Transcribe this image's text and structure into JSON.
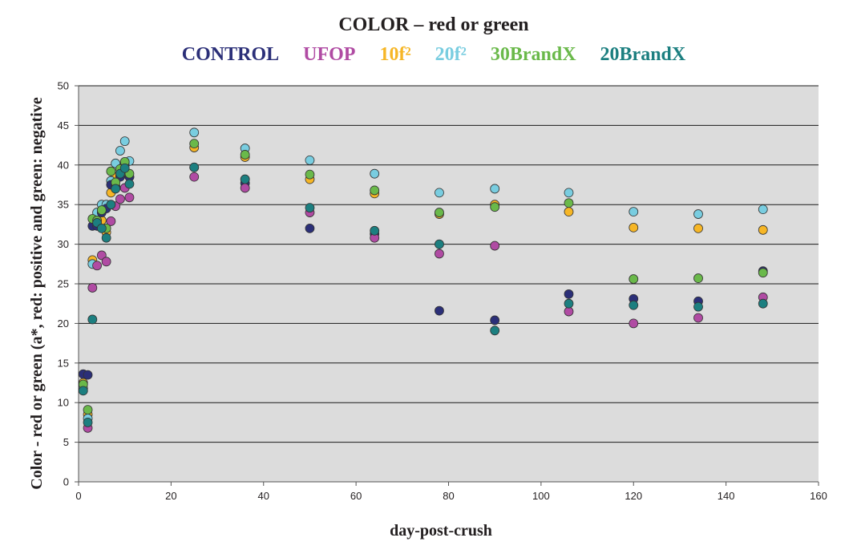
{
  "chart_data": {
    "type": "scatter",
    "title": "COLOR – red or green",
    "xlabel": "day-post-crush",
    "ylabel": "Color - red or green (a*, red: positive and green: negative",
    "xlim": [
      0,
      160
    ],
    "ylim": [
      0,
      50
    ],
    "xticks": [
      "0",
      "20",
      "40",
      "60",
      "80",
      "100",
      "120",
      "140",
      "160"
    ],
    "yticks": [
      "0",
      "5",
      "10",
      "15",
      "20",
      "25",
      "30",
      "35",
      "40",
      "45",
      "50"
    ],
    "grid": "horizontal",
    "legend_position": "top",
    "series": [
      {
        "name": "10f²",
        "color": "#f6b626",
        "points": [
          [
            1,
            12.5
          ],
          [
            2,
            8.5
          ],
          [
            3,
            28
          ],
          [
            4,
            33
          ],
          [
            5,
            33
          ],
          [
            6,
            31.5
          ],
          [
            7,
            36.5
          ],
          [
            8,
            38.5
          ],
          [
            9,
            38.7
          ],
          [
            10,
            40.2
          ],
          [
            11,
            38.5
          ],
          [
            25,
            42.2
          ],
          [
            36,
            41
          ],
          [
            50,
            38.2
          ],
          [
            64,
            36.4
          ],
          [
            78,
            33.8
          ],
          [
            90,
            35
          ],
          [
            106,
            34.1
          ],
          [
            120,
            32.1
          ],
          [
            134,
            32
          ],
          [
            148,
            31.8
          ]
        ]
      },
      {
        "name": "20f²",
        "color": "#79cde0",
        "points": [
          [
            1,
            11.8
          ],
          [
            2,
            8
          ],
          [
            3,
            27.5
          ],
          [
            4,
            34
          ],
          [
            5,
            35
          ],
          [
            6,
            35
          ],
          [
            7,
            38
          ],
          [
            8,
            40.2
          ],
          [
            9,
            41.8
          ],
          [
            10,
            43
          ],
          [
            11,
            40.5
          ],
          [
            25,
            44.1
          ],
          [
            36,
            42.1
          ],
          [
            50,
            40.6
          ],
          [
            64,
            38.9
          ],
          [
            78,
            36.5
          ],
          [
            90,
            37
          ],
          [
            106,
            36.5
          ],
          [
            120,
            34.1
          ],
          [
            134,
            33.8
          ],
          [
            148,
            34.4
          ]
        ]
      },
      {
        "name": "CONTROL",
        "color": "#2b2f78",
        "points": [
          [
            1,
            13.6
          ],
          [
            2,
            13.5
          ],
          [
            3,
            32.3
          ],
          [
            4,
            32.3
          ],
          [
            5,
            34
          ],
          [
            6,
            34.5
          ],
          [
            7,
            37.5
          ],
          [
            8,
            37.3
          ],
          [
            9,
            38.5
          ],
          [
            10,
            40
          ],
          [
            11,
            38.5
          ],
          [
            25,
            39.7
          ],
          [
            36,
            37.7
          ],
          [
            50,
            32
          ],
          [
            64,
            31.3
          ],
          [
            78,
            21.6
          ],
          [
            90,
            20.4
          ],
          [
            106,
            23.7
          ],
          [
            120,
            23.1
          ],
          [
            134,
            22.8
          ],
          [
            148,
            26.6
          ]
        ]
      },
      {
        "name": "UFOP",
        "color": "#b04ba3",
        "points": [
          [
            2,
            6.8
          ],
          [
            3,
            24.5
          ],
          [
            4,
            27.3
          ],
          [
            5,
            28.6
          ],
          [
            6,
            27.8
          ],
          [
            7,
            32.9
          ],
          [
            8,
            34.8
          ],
          [
            9,
            35.7
          ],
          [
            10,
            37.1
          ],
          [
            11,
            35.9
          ],
          [
            25,
            38.5
          ],
          [
            36,
            37.1
          ],
          [
            50,
            34
          ],
          [
            64,
            30.8
          ],
          [
            78,
            28.8
          ],
          [
            90,
            29.8
          ],
          [
            106,
            21.5
          ],
          [
            120,
            20
          ],
          [
            134,
            20.7
          ],
          [
            148,
            23.3
          ]
        ]
      },
      {
        "name": "30BrandX",
        "color": "#6ab94a",
        "points": [
          [
            1,
            12.3
          ],
          [
            2,
            9.1
          ],
          [
            3,
            33.2
          ],
          [
            4,
            33
          ],
          [
            5,
            34.3
          ],
          [
            6,
            32
          ],
          [
            7,
            39.2
          ],
          [
            8,
            37.8
          ],
          [
            9,
            39.5
          ],
          [
            10,
            40.4
          ],
          [
            11,
            38.9
          ],
          [
            25,
            42.7
          ],
          [
            36,
            41.3
          ],
          [
            50,
            38.8
          ],
          [
            64,
            36.8
          ],
          [
            78,
            34
          ],
          [
            90,
            34.7
          ],
          [
            106,
            35.2
          ],
          [
            120,
            25.6
          ],
          [
            134,
            25.7
          ],
          [
            148,
            26.4
          ]
        ]
      },
      {
        "name": "20BrandX",
        "color": "#1c7f80",
        "points": [
          [
            1,
            11.5
          ],
          [
            2,
            7.5
          ],
          [
            3,
            20.5
          ],
          [
            4,
            32.7
          ],
          [
            5,
            32
          ],
          [
            6,
            30.8
          ],
          [
            7,
            35
          ],
          [
            8,
            37
          ],
          [
            9,
            38.9
          ],
          [
            10,
            39.6
          ],
          [
            11,
            37.6
          ],
          [
            25,
            39.7
          ],
          [
            36,
            38.2
          ],
          [
            50,
            34.6
          ],
          [
            64,
            31.7
          ],
          [
            78,
            30
          ],
          [
            90,
            19.1
          ],
          [
            106,
            22.5
          ],
          [
            120,
            22.3
          ],
          [
            134,
            22.1
          ],
          [
            148,
            22.5
          ]
        ]
      }
    ]
  }
}
